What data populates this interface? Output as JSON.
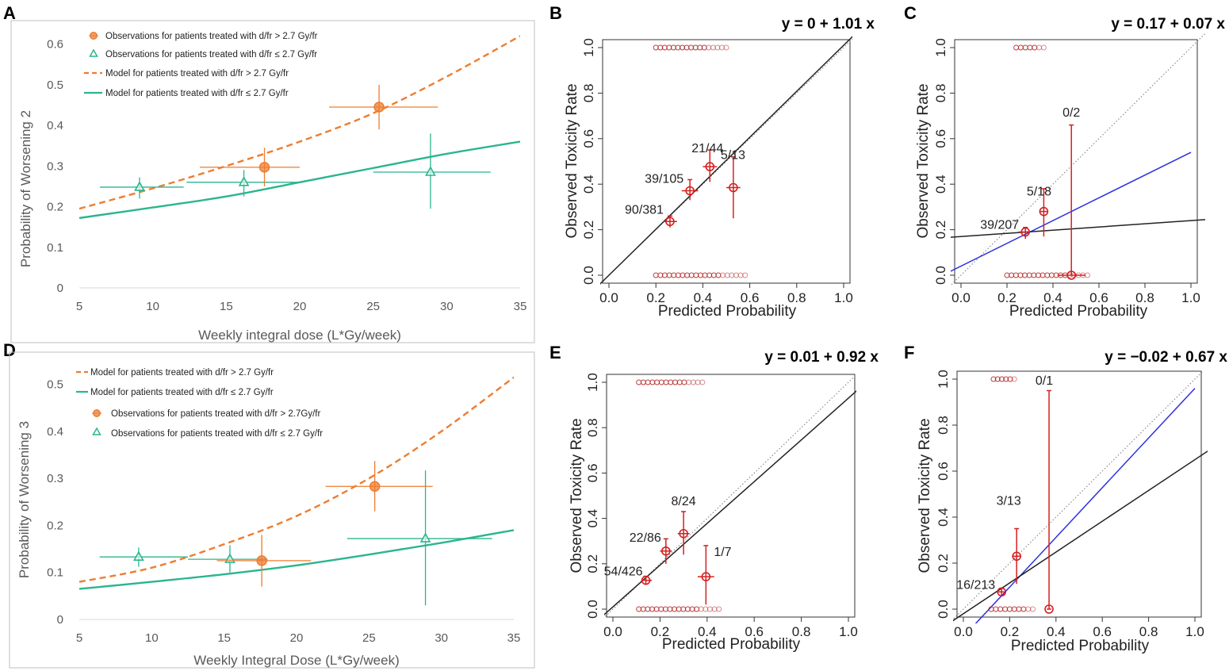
{
  "panels": {
    "A": {
      "letter": "A"
    },
    "B": {
      "letter": "B"
    },
    "C": {
      "letter": "C"
    },
    "D": {
      "letter": "D"
    },
    "E": {
      "letter": "E"
    },
    "F": {
      "letter": "F"
    }
  },
  "colors": {
    "orange": "#ED7D31",
    "teal": "#2BB58E",
    "red": "#D42020",
    "darkred": "#B02020",
    "blue": "#2F2FE0",
    "black": "#222222",
    "axis_gray": "#595959",
    "frame_gray": "#BFBFBF"
  },
  "chart_data": [
    {
      "panel": "A",
      "type": "line",
      "xlabel": "Weekly integral dose (L*Gy/week)",
      "ylabel": "Probability of Worsening 2",
      "xlim": [
        5,
        35
      ],
      "ylim": [
        0,
        0.65
      ],
      "xticks": [
        "5",
        "10",
        "15",
        "20",
        "25",
        "30",
        "35"
      ],
      "yticks": [
        "0",
        "0.1",
        "0.2",
        "0.3",
        "0.4",
        "0.5",
        "0.6"
      ],
      "legend": [
        "Observations for patients treated with d/fr > 2.7 Gy/fr",
        "Observations for patients treated with d/fr ≤ 2.7 Gy/fr",
        "Model for patients treated with d/fr > 2.7 Gy/fr",
        "Model for patients treated with d/fr ≤ 2.7 Gy/fr"
      ],
      "model_high": {
        "x": [
          5,
          10,
          15,
          20,
          25,
          30,
          35
        ],
        "y": [
          0.195,
          0.245,
          0.3,
          0.36,
          0.43,
          0.52,
          0.62
        ]
      },
      "model_low": {
        "x": [
          5,
          10,
          15,
          20,
          25,
          30,
          35
        ],
        "y": [
          0.172,
          0.198,
          0.225,
          0.26,
          0.295,
          0.33,
          0.36
        ]
      },
      "obs_high": [
        {
          "x": 17.6,
          "y": 0.297,
          "xerr": [
            13.2,
            20.0
          ],
          "yerr": [
            0.25,
            0.345
          ]
        },
        {
          "x": 25.4,
          "y": 0.445,
          "xerr": [
            22.0,
            29.4
          ],
          "yerr": [
            0.39,
            0.5
          ]
        }
      ],
      "obs_low": [
        {
          "x": 9.1,
          "y": 0.248,
          "xerr": [
            6.4,
            12.1
          ],
          "yerr": [
            0.22,
            0.272
          ]
        },
        {
          "x": 16.2,
          "y": 0.26,
          "xerr": [
            12.3,
            20.0
          ],
          "yerr": [
            0.225,
            0.29
          ]
        },
        {
          "x": 28.9,
          "y": 0.285,
          "xerr": [
            25.0,
            33.0
          ],
          "yerr": [
            0.195,
            0.38
          ]
        }
      ]
    },
    {
      "panel": "B",
      "type": "scatter",
      "equation": "y = 0 + 1.01 x",
      "xlabel": "Predicted Probability",
      "ylabel": "Observed Toxicity Rate",
      "xlim": [
        0,
        1
      ],
      "ylim": [
        0,
        1
      ],
      "xticks": [
        "0.0",
        "0.2",
        "0.4",
        "0.6",
        "0.8",
        "1.0"
      ],
      "yticks": [
        "0.0",
        "0.2",
        "0.4",
        "0.6",
        "0.8",
        "1.0"
      ],
      "fit_line": {
        "intercept": 0.0,
        "slope": 1.01
      },
      "blue_line": null,
      "rug_top": [
        0.2,
        0.5
      ],
      "rug_bottom": [
        0.2,
        0.58
      ],
      "points": [
        {
          "x": 0.26,
          "y": 0.236,
          "yerr": [
            0.21,
            0.26
          ],
          "xerr": [
            0.23,
            0.29
          ],
          "label": "90/381"
        },
        {
          "x": 0.345,
          "y": 0.371,
          "yerr": [
            0.33,
            0.42
          ],
          "xerr": [
            0.31,
            0.38
          ],
          "label": "39/105"
        },
        {
          "x": 0.43,
          "y": 0.477,
          "yerr": [
            0.41,
            0.55
          ],
          "xerr": [
            0.4,
            0.46
          ],
          "label": "21/44"
        },
        {
          "x": 0.53,
          "y": 0.385,
          "yerr": [
            0.25,
            0.52
          ],
          "xerr": [
            0.5,
            0.56
          ],
          "label": "5/13"
        }
      ]
    },
    {
      "panel": "C",
      "type": "scatter",
      "equation": "y = 0.17 + 0.07 x",
      "xlabel": "Predicted Probability",
      "ylabel": "Observed Toxicity Rate",
      "xlim": [
        0,
        1
      ],
      "ylim": [
        0,
        1
      ],
      "xticks": [
        "0.0",
        "0.2",
        "0.4",
        "0.6",
        "0.8",
        "1.0"
      ],
      "yticks": [
        "0.0",
        "0.2",
        "0.4",
        "0.6",
        "0.8",
        "1.0"
      ],
      "fit_line": {
        "intercept": 0.17,
        "slope": 0.07
      },
      "blue_line": {
        "intercept": 0.04,
        "slope": 0.5
      },
      "rug_top": [
        0.24,
        0.36
      ],
      "rug_bottom": [
        0.2,
        0.55
      ],
      "points": [
        {
          "x": 0.28,
          "y": 0.19,
          "yerr": [
            0.16,
            0.21
          ],
          "xerr": [
            0.25,
            0.3
          ],
          "label": "39/207"
        },
        {
          "x": 0.36,
          "y": 0.28,
          "yerr": [
            0.17,
            0.38
          ],
          "xerr": [
            0.345,
            0.375
          ],
          "label": "5/18"
        },
        {
          "x": 0.48,
          "y": 0.0,
          "yerr": [
            0.0,
            0.66
          ],
          "xerr": [
            0.42,
            0.54
          ],
          "label": "0/2"
        }
      ]
    },
    {
      "panel": "D",
      "type": "line",
      "xlabel": "Weekly Integral Dose (L*Gy/week)",
      "ylabel": "Probability of Worsening 3",
      "xlim": [
        5,
        35
      ],
      "ylim": [
        0,
        0.55
      ],
      "xticks": [
        "5",
        "10",
        "15",
        "20",
        "25",
        "30",
        "35"
      ],
      "yticks": [
        "0",
        "0.1",
        "0.2",
        "0.3",
        "0.4",
        "0.5"
      ],
      "legend": [
        "Model for patients treated with d/fr > 2.7 Gy/fr",
        "Model for patients treated with d/fr ≤ 2.7 Gy/fr",
        "Observations for patients treated  with d/fr > 2.7Gy/fr",
        "Observations for patients treated with d/fr ≤ 2.7 Gy/fr"
      ],
      "model_high": {
        "x": [
          5,
          10,
          15,
          20,
          25,
          30,
          35
        ],
        "y": [
          0.08,
          0.11,
          0.16,
          0.22,
          0.3,
          0.4,
          0.515
        ]
      },
      "model_low": {
        "x": [
          5,
          10,
          15,
          20,
          25,
          30,
          35
        ],
        "y": [
          0.065,
          0.08,
          0.096,
          0.115,
          0.138,
          0.163,
          0.19
        ]
      },
      "obs_high": [
        {
          "x": 17.6,
          "y": 0.125,
          "xerr": [
            14.5,
            21.0
          ],
          "yerr": [
            0.07,
            0.18
          ]
        },
        {
          "x": 25.4,
          "y": 0.283,
          "xerr": [
            22.0,
            29.4
          ],
          "yerr": [
            0.23,
            0.337
          ]
        }
      ],
      "obs_low": [
        {
          "x": 9.1,
          "y": 0.133,
          "xerr": [
            6.4,
            12.5
          ],
          "yerr": [
            0.112,
            0.153
          ]
        },
        {
          "x": 15.4,
          "y": 0.128,
          "xerr": [
            12.5,
            18.0
          ],
          "yerr": [
            0.1,
            0.158
          ]
        },
        {
          "x": 28.9,
          "y": 0.172,
          "xerr": [
            23.5,
            33.5
          ],
          "yerr": [
            0.03,
            0.317
          ]
        }
      ]
    },
    {
      "panel": "E",
      "type": "scatter",
      "equation": "y = 0.01 + 0.92 x",
      "xlabel": "Predicted Probability",
      "ylabel": "Observed Toxicity Rate",
      "xlim": [
        0,
        1
      ],
      "ylim": [
        0,
        1
      ],
      "xticks": [
        "0.0",
        "0.2",
        "0.4",
        "0.6",
        "0.8",
        "1.0"
      ],
      "yticks": [
        "0.0",
        "0.2",
        "0.4",
        "0.6",
        "0.8",
        "1.0"
      ],
      "fit_line": {
        "intercept": 0.01,
        "slope": 0.92
      },
      "blue_line": null,
      "rug_top": [
        0.11,
        0.38
      ],
      "rug_bottom": [
        0.11,
        0.45
      ],
      "points": [
        {
          "x": 0.14,
          "y": 0.127,
          "yerr": [
            0.11,
            0.145
          ],
          "xerr": [
            0.12,
            0.165
          ],
          "label": "54/426"
        },
        {
          "x": 0.225,
          "y": 0.256,
          "yerr": [
            0.2,
            0.31
          ],
          "xerr": [
            0.2,
            0.25
          ],
          "label": "22/86"
        },
        {
          "x": 0.3,
          "y": 0.333,
          "yerr": [
            0.24,
            0.43
          ],
          "xerr": [
            0.275,
            0.325
          ],
          "label": "8/24"
        },
        {
          "x": 0.395,
          "y": 0.143,
          "yerr": [
            0.02,
            0.28
          ],
          "xerr": [
            0.36,
            0.43
          ],
          "label": "1/7"
        }
      ]
    },
    {
      "panel": "F",
      "type": "scatter",
      "equation": "y = −0.02 + 0.67 x",
      "xlabel": "Predicted Probability",
      "ylabel": "Observed Toxicity Rate",
      "xlim": [
        0,
        1
      ],
      "ylim": [
        0,
        1
      ],
      "xticks": [
        "0.0",
        "0.2",
        "0.4",
        "0.6",
        "0.8",
        "1.0"
      ],
      "yticks": [
        "0.0",
        "0.2",
        "0.4",
        "0.6",
        "0.8",
        "1.0"
      ],
      "fit_line": {
        "intercept": -0.02,
        "slope": 0.67
      },
      "blue_line": {
        "intercept": -0.12,
        "slope": 1.08
      },
      "rug_top": [
        0.13,
        0.22
      ],
      "rug_bottom": [
        0.12,
        0.3
      ],
      "points": [
        {
          "x": 0.165,
          "y": 0.075,
          "yerr": [
            0.06,
            0.09
          ],
          "xerr": [
            0.15,
            0.18
          ],
          "label": "16/213"
        },
        {
          "x": 0.23,
          "y": 0.23,
          "yerr": [
            0.11,
            0.35
          ],
          "xerr": [
            0.21,
            0.25
          ],
          "label": "3/13"
        },
        {
          "x": 0.37,
          "y": 0.0,
          "yerr": [
            0.0,
            0.95
          ],
          "xerr": [
            0.36,
            0.38
          ],
          "label": "0/1"
        }
      ]
    }
  ]
}
